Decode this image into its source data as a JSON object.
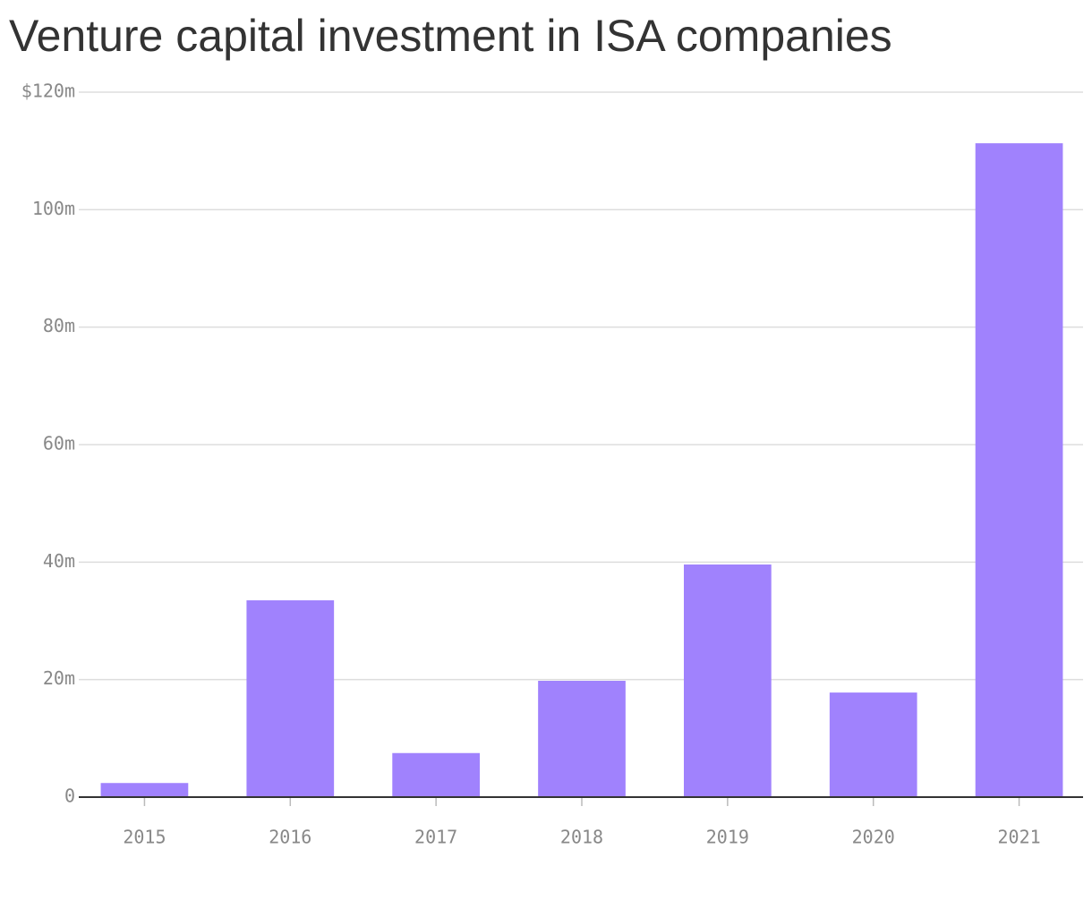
{
  "chart_data": {
    "type": "bar",
    "title": "Venture capital investment in ISA companies",
    "categories": [
      "2015",
      "2016",
      "2017",
      "2018",
      "2019",
      "2020",
      "2021"
    ],
    "values": [
      2.4,
      33.5,
      7.5,
      19.8,
      39.6,
      17.8,
      111.3
    ],
    "color": "#a082fd",
    "ylim": [
      0,
      120
    ],
    "yticks": [
      0,
      {
        "value": 20,
        "label": "20m"
      },
      {
        "value": 40,
        "label": "40m"
      },
      {
        "value": 60,
        "label": "60m"
      },
      {
        "value": 80,
        "label": "80m"
      },
      {
        "value": 100,
        "label": "100m"
      },
      {
        "value": 120,
        "label": "$120m"
      }
    ],
    "grid": true
  }
}
